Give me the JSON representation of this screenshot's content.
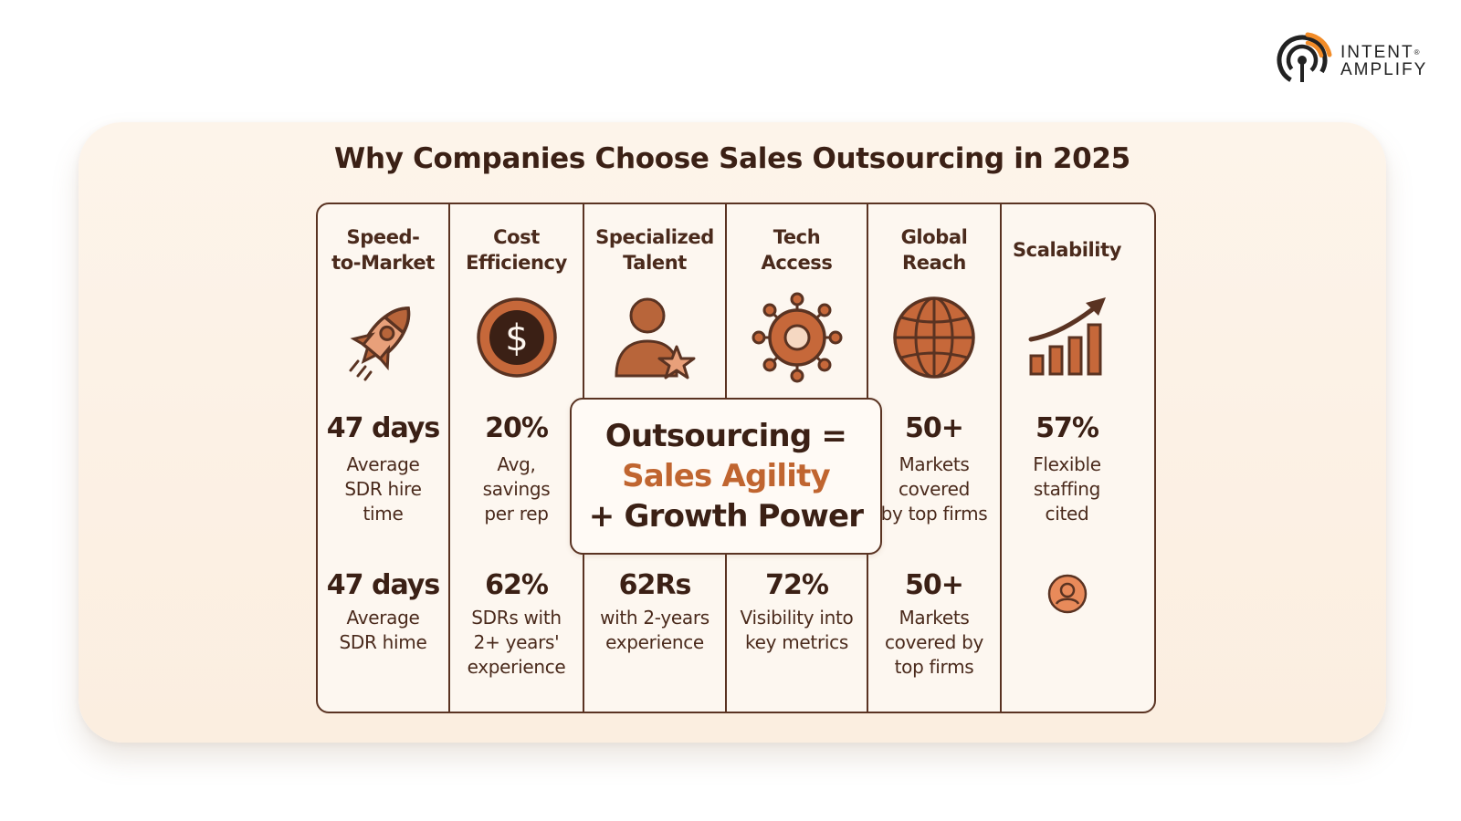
{
  "brand": {
    "name_line1": "INTENT",
    "name_line2": "AMPLIFY",
    "reg": "®",
    "accent": "#f28c28"
  },
  "title": "Why Companies Choose Sales Outsourcing in 2025",
  "colors": {
    "dark": "#3b2015",
    "accent": "#c06530",
    "icon_fill": "#b8653a",
    "card_bg": "#fbeee0"
  },
  "columns": [
    {
      "head": "Speed-\nto-Market",
      "icon": "rocket-icon",
      "stat1": "47 days",
      "desc1": "Average\nSDR hire\ntime",
      "stat2": "47 days",
      "desc2": "Average\nSDR hime"
    },
    {
      "head": "Cost\nEfficiency",
      "icon": "dollar-coin-icon",
      "stat1": "20%",
      "desc1": "Avg,\nsavings\nper rep",
      "stat2": "62%",
      "desc2": "SDRs with\n2+ years'\nexperience"
    },
    {
      "head": "Specialized\nTalent",
      "icon": "person-star-icon",
      "stat2": "62Rs",
      "desc2": "with 2-years\nexperience"
    },
    {
      "head": "Tech\nAccess",
      "icon": "gear-network-icon",
      "stat2": "72%",
      "desc2": "Visibility into\nkey metrics"
    },
    {
      "head": "Global\nReach",
      "icon": "globe-icon",
      "stat1": "50+",
      "desc1": "Markets\ncovered\nby top firms",
      "stat2": "50+",
      "desc2": "Markets\ncovered by\ntop firms"
    },
    {
      "head": "Scalability",
      "icon": "growth-chart-icon",
      "stat1": "57%",
      "desc1": "Flexible\nstaffing\ncited",
      "bottom_icon": "user-circle-icon"
    }
  ],
  "callout": {
    "line1": "Outsourcing =",
    "line2": "Sales Agility",
    "line3": "+ Growth Power"
  }
}
